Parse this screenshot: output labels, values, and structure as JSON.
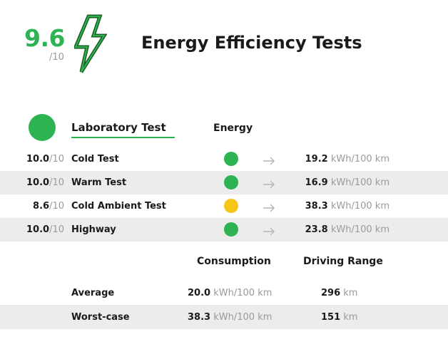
{
  "header": {
    "score": "9.6",
    "score_scale": "/10",
    "title": "Energy Efficiency Tests",
    "bolt_icon": "lightning-bolt-icon"
  },
  "section": {
    "label": "Laboratory Test",
    "column_header": "Energy",
    "dot_color": "#2db352"
  },
  "tests": [
    {
      "score": "10.0",
      "scale": "/10",
      "name": "Cold Test",
      "rating_color": "#2db352",
      "value": "19.2",
      "unit": "kWh/100 km"
    },
    {
      "score": "10.0",
      "scale": "/10",
      "name": "Warm Test",
      "rating_color": "#2db352",
      "value": "16.9",
      "unit": "kWh/100 km"
    },
    {
      "score": "8.6",
      "scale": "/10",
      "name": "Cold Ambient Test",
      "rating_color": "#f5c518",
      "value": "38.3",
      "unit": "kWh/100 km"
    },
    {
      "score": "10.0",
      "scale": "/10",
      "name": "Highway",
      "rating_color": "#2db352",
      "value": "23.8",
      "unit": "kWh/100 km"
    }
  ],
  "summary": {
    "consumption_header": "Consumption",
    "range_header": "Driving Range",
    "rows": [
      {
        "label": "Average",
        "consumption": "20.0",
        "consumption_unit": "kWh/100 km",
        "range": "296",
        "range_unit": "km"
      },
      {
        "label": "Worst-case",
        "consumption": "38.3",
        "consumption_unit": "kWh/100 km",
        "range": "151",
        "range_unit": "km"
      }
    ]
  }
}
